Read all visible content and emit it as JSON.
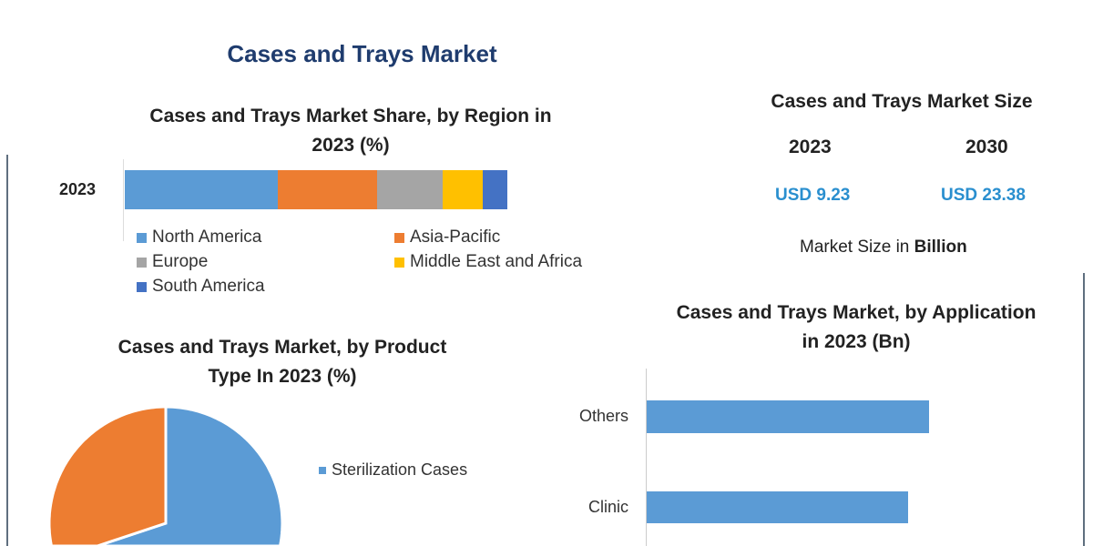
{
  "title": "Cases and Trays Market",
  "colors": {
    "north_america": "#5b9bd5",
    "asia_pacific": "#ed7d31",
    "europe": "#a5a5a5",
    "mea": "#ffc000",
    "south_america": "#4472c4",
    "bar": "#5b9bd5"
  },
  "market_size": {
    "heading": "Cases and Trays Market Size",
    "years": [
      {
        "year": "2023",
        "value": "USD 9.23"
      },
      {
        "year": "2030",
        "value": "USD 23.38"
      }
    ],
    "note_prefix": "Market Size in ",
    "note_bold": "Billion"
  },
  "chart_data": [
    {
      "type": "bar",
      "orientation": "horizontal-stacked",
      "title_line1": "Cases and Trays Market Share, by Region in",
      "title_line2": "2023 (%)",
      "categories": [
        "2023"
      ],
      "series": [
        {
          "name": "North America",
          "values": [
            40
          ]
        },
        {
          "name": "Asia-Pacific",
          "values": [
            26
          ]
        },
        {
          "name": "Europe",
          "values": [
            17
          ]
        },
        {
          "name": "Middle East and Africa",
          "values": [
            10.5
          ]
        },
        {
          "name": "South America",
          "values": [
            6.5
          ]
        }
      ],
      "legend": "bottom"
    },
    {
      "type": "pie",
      "title_line1": "Cases and Trays Market, by Product",
      "title_line2": "Type In 2023 (%)",
      "slices": [
        {
          "name": "Sterilization Cases",
          "value": 60
        },
        {
          "name": "",
          "value": 40
        }
      ],
      "legend": "right"
    },
    {
      "type": "bar",
      "orientation": "horizontal",
      "title_line1": "Cases and Trays Market, by Application",
      "title_line2": "in 2023 (Bn)",
      "categories": [
        "Others",
        "Clinic"
      ],
      "values": [
        3.1,
        2.87
      ]
    }
  ]
}
